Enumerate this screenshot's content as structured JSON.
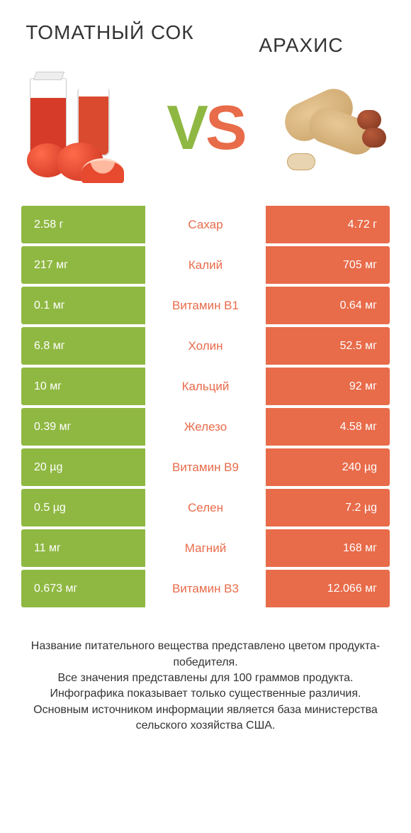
{
  "colors": {
    "left": "#8fb842",
    "right": "#e86b4a",
    "text": "#333333",
    "cell_text": "#ffffff",
    "background": "#ffffff"
  },
  "header": {
    "left_title": "ТОМАТНЫЙ СОК",
    "right_title": "АРАХИС",
    "vs_v": "V",
    "vs_s": "S"
  },
  "table": {
    "rows": [
      {
        "left": "2.58 г",
        "label": "Сахар",
        "right": "4.72 г",
        "winner": "right"
      },
      {
        "left": "217 мг",
        "label": "Калий",
        "right": "705 мг",
        "winner": "right"
      },
      {
        "left": "0.1 мг",
        "label": "Витамин B1",
        "right": "0.64 мг",
        "winner": "right"
      },
      {
        "left": "6.8 мг",
        "label": "Холин",
        "right": "52.5 мг",
        "winner": "right"
      },
      {
        "left": "10 мг",
        "label": "Кальций",
        "right": "92 мг",
        "winner": "right"
      },
      {
        "left": "0.39 мг",
        "label": "Железо",
        "right": "4.58 мг",
        "winner": "right"
      },
      {
        "left": "20 µg",
        "label": "Витамин B9",
        "right": "240 µg",
        "winner": "right"
      },
      {
        "left": "0.5 µg",
        "label": "Селен",
        "right": "7.2 µg",
        "winner": "right"
      },
      {
        "left": "11 мг",
        "label": "Магний",
        "right": "168 мг",
        "winner": "right"
      },
      {
        "left": "0.673 мг",
        "label": "Витамин B3",
        "right": "12.066 мг",
        "winner": "right"
      }
    ]
  },
  "footnote": {
    "line1": "Название питательного вещества представлено цветом продукта-победителя.",
    "line2": "Все значения представлены для 100 граммов продукта.",
    "line3": "Инфографика показывает только существенные различия.",
    "line4": "Основным источником информации является база министерства сельского хозяйства США."
  }
}
